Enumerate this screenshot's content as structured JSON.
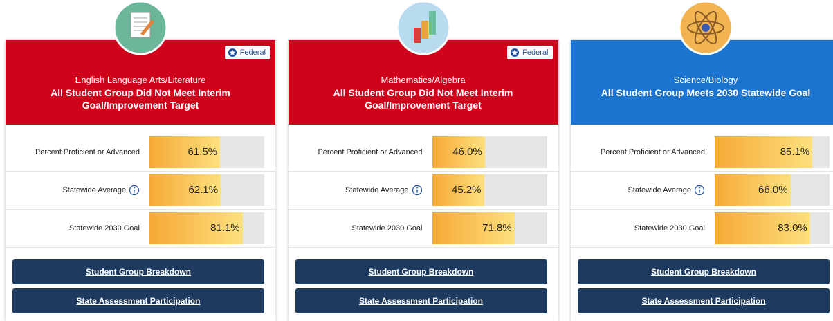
{
  "cards": [
    {
      "subject": "English Language Arts/Literature",
      "status": "All Student Group Did Not Meet Interim Goal/Improvement Target",
      "badge": "Federal",
      "color": "#d0021b",
      "icon_color": "#6cb69a",
      "xlim": [
        0,
        100
      ],
      "metrics": [
        {
          "label": "Percent Proficient or Advanced",
          "value": 61.5,
          "value_label": "61.5%"
        },
        {
          "label": "Statewide Average",
          "value": 62.1,
          "value_label": "62.1%"
        },
        {
          "label": "Statewide 2030 Goal",
          "value": 81.1,
          "value_label": "81.1%"
        }
      ],
      "buttons": [
        "Student Group Breakdown",
        "State Assessment Participation"
      ]
    },
    {
      "subject": "Mathematics/Algebra",
      "status": "All Student Group Did Not Meet Interim Goal/Improvement Target",
      "badge": "Federal",
      "color": "#d0021b",
      "icon_color": "#b9dbef",
      "xlim": [
        0,
        100
      ],
      "metrics": [
        {
          "label": "Percent Proficient or Advanced",
          "value": 46.0,
          "value_label": "46.0%"
        },
        {
          "label": "Statewide Average",
          "value": 45.2,
          "value_label": "45.2%"
        },
        {
          "label": "Statewide 2030 Goal",
          "value": 71.8,
          "value_label": "71.8%"
        }
      ],
      "buttons": [
        "Student Group Breakdown",
        "State Assessment Participation"
      ]
    },
    {
      "subject": "Science/Biology",
      "status": "All Student Group Meets 2030 Statewide Goal",
      "color": "#1b74d0",
      "icon_color": "#f2b450",
      "xlim": [
        0,
        100
      ],
      "metrics": [
        {
          "label": "Percent Proficient or Advanced",
          "value": 85.1,
          "value_label": "85.1%"
        },
        {
          "label": "Statewide Average",
          "value": 66.0,
          "value_label": "66.0%"
        },
        {
          "label": "Statewide 2030 Goal",
          "value": 83.0,
          "value_label": "83.0%"
        }
      ],
      "buttons": [
        "Student Group Breakdown",
        "State Assessment Participation"
      ]
    }
  ]
}
